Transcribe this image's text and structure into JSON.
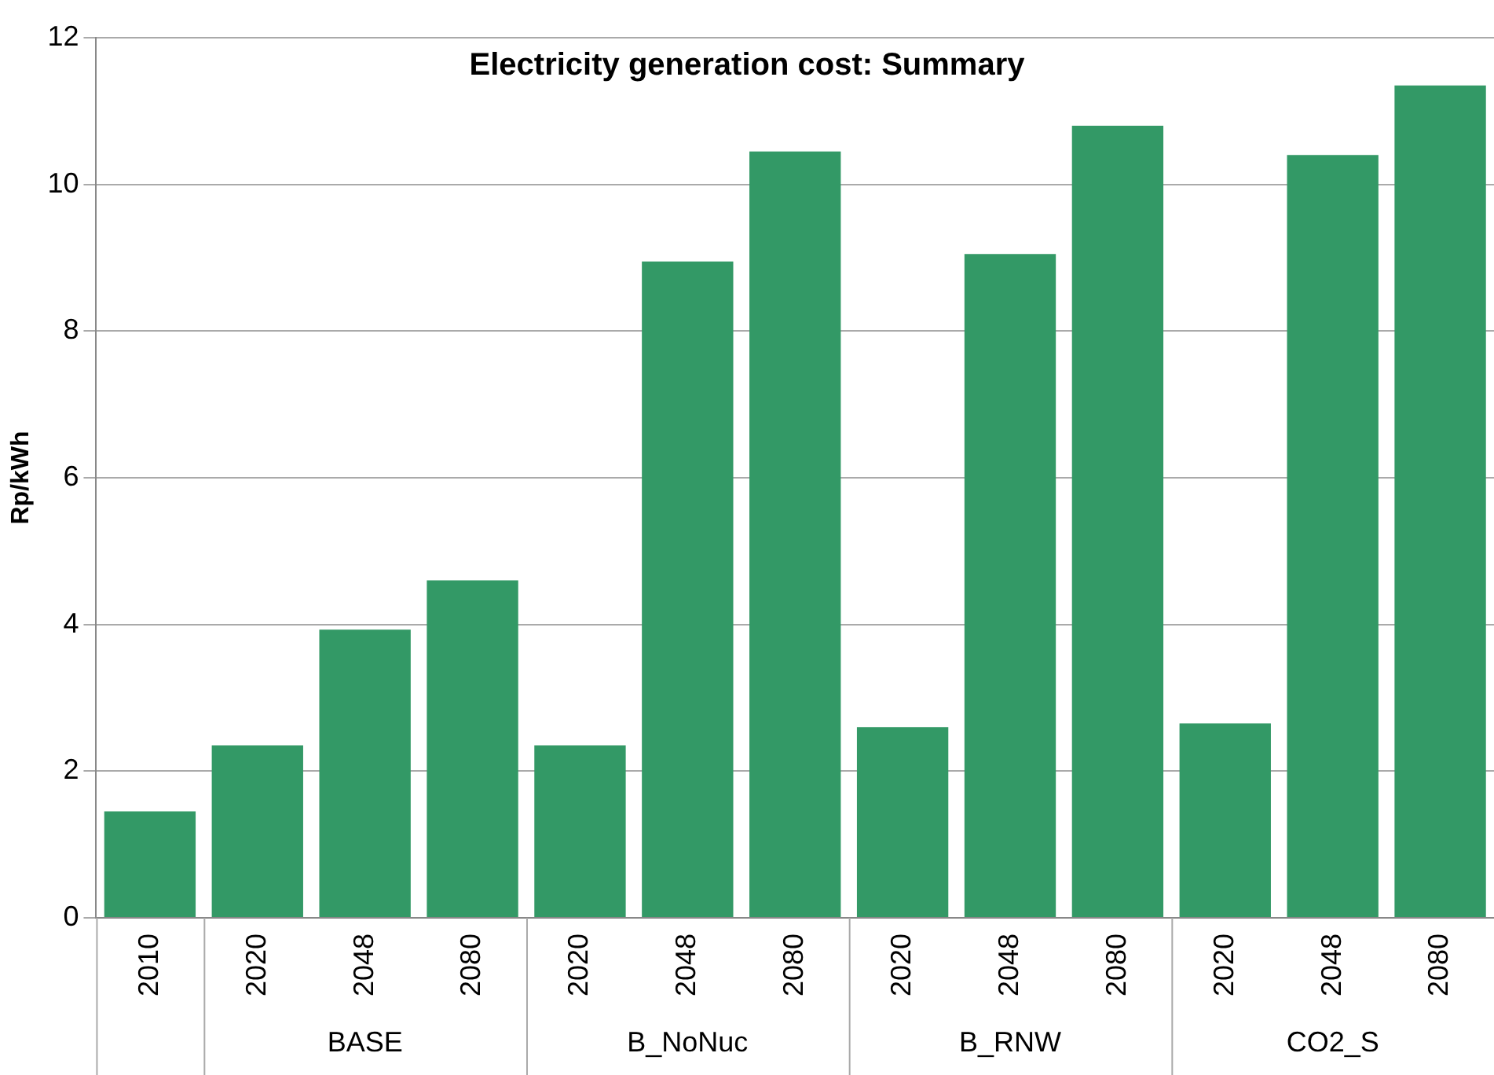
{
  "chart_data": {
    "type": "bar",
    "title": "Electricity generation cost: Summary",
    "ylabel": "Rp/kWh",
    "categories": [
      "2010",
      "2020",
      "2048",
      "2080",
      "2020",
      "2048",
      "2080",
      "2020",
      "2048",
      "2080",
      "2020",
      "2048",
      "2080"
    ],
    "values": [
      1.45,
      2.35,
      3.93,
      4.6,
      2.35,
      8.95,
      10.45,
      2.6,
      9.05,
      10.8,
      2.65,
      10.4,
      11.35
    ],
    "color": "#339966",
    "ylim": [
      0,
      12
    ],
    "yticks": [
      0,
      2,
      4,
      6,
      8,
      10,
      12
    ],
    "grid": "y",
    "annotations": [
      "BASE",
      "B_NoNuc",
      "B_RNW",
      "CO2_S"
    ]
  }
}
